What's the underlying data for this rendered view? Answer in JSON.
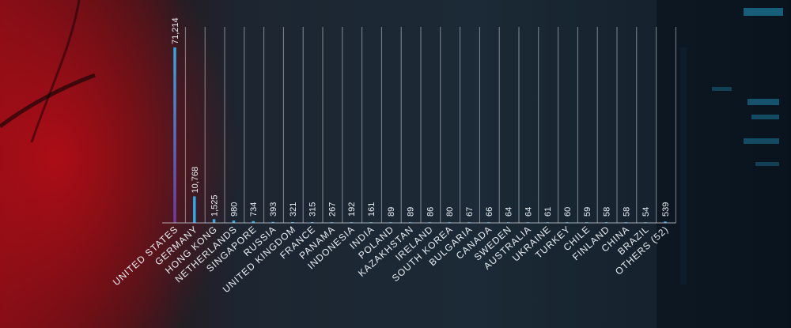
{
  "chart_data": {
    "type": "bar",
    "title": "",
    "xlabel": "",
    "ylabel": "",
    "categories": [
      "UNITED STATES",
      "GERMANY",
      "HONG KONG",
      "NETHERLANDS",
      "SINGAPORE",
      "RUSSIA",
      "UNITED KINGDOM",
      "FRANCE",
      "PANAMA",
      "INDONESIA",
      "INDIA",
      "POLAND",
      "KAZAKHSTAN",
      "IRELAND",
      "SOUTH KOREA",
      "BULGARIA",
      "CANADA",
      "SWEDEN",
      "AUSTRALIA",
      "UKRAINE",
      "TURKEY",
      "CHILE",
      "FINLAND",
      "CHINA",
      "BRAZIL",
      "OTHERS (52)"
    ],
    "values": [
      71214,
      10768,
      1525,
      980,
      734,
      393,
      321,
      315,
      267,
      192,
      161,
      89,
      89,
      86,
      80,
      67,
      66,
      64,
      64,
      61,
      60,
      59,
      58,
      58,
      54,
      539
    ],
    "value_labels": [
      "71,214",
      "10,768",
      "1,525",
      "980",
      "734",
      "393",
      "321",
      "315",
      "267",
      "192",
      "161",
      "89",
      "89",
      "86",
      "80",
      "67",
      "66",
      "64",
      "64",
      "61",
      "60",
      "59",
      "58",
      "58",
      "54",
      "539"
    ],
    "ylim": [
      0,
      71214
    ],
    "grid": true,
    "bar_color_top": "#2fa8e6",
    "bar_color_bottom": "#6e3aa0",
    "label_color": "#e9eef3"
  }
}
